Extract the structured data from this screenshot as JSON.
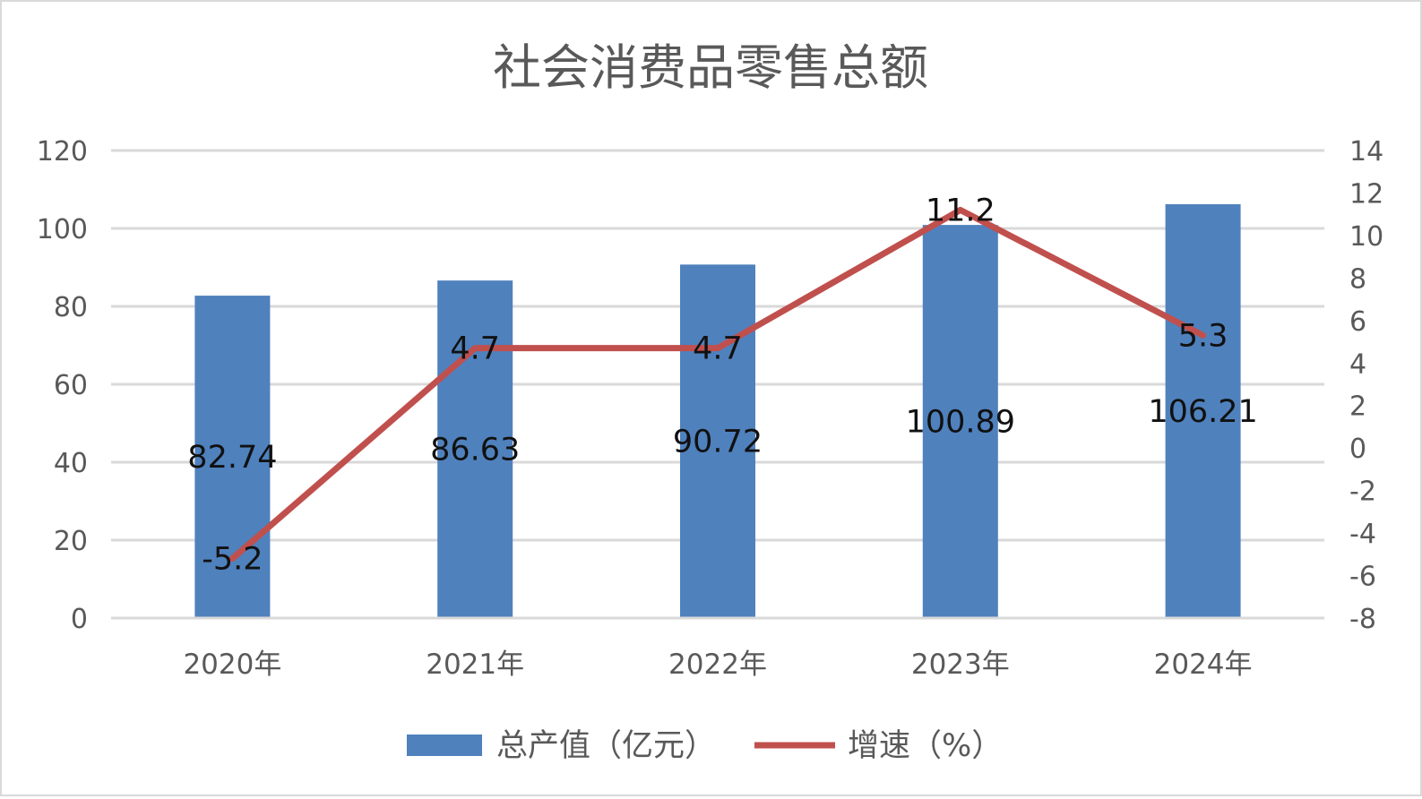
{
  "chart_data": {
    "type": "bar",
    "title": "社会消费品零售总额",
    "categories": [
      "2020年",
      "2021年",
      "2022年",
      "2023年",
      "2024年"
    ],
    "series": [
      {
        "name": "总产值（亿元）",
        "type": "bar",
        "axis": "left",
        "color": "#4f81bd",
        "values": [
          82.74,
          86.63,
          90.72,
          100.89,
          106.21
        ],
        "labels": [
          "82.74",
          "86.63",
          "90.72",
          "100.89",
          "106.21"
        ]
      },
      {
        "name": "增速（%）",
        "type": "line",
        "axis": "right",
        "color": "#c0504d",
        "values": [
          -5.2,
          4.7,
          4.7,
          11.2,
          5.3
        ],
        "labels": [
          "-5.2",
          "4.7",
          "4.7",
          "11.2",
          "5.3"
        ]
      }
    ],
    "y_left": {
      "lim": [
        0,
        120
      ],
      "ticks": [
        "0",
        "20",
        "40",
        "60",
        "80",
        "100",
        "120"
      ]
    },
    "y_right": {
      "lim": [
        -8,
        14
      ],
      "ticks": [
        "-8",
        "-6",
        "-4",
        "-2",
        "0",
        "2",
        "4",
        "6",
        "8",
        "10",
        "12",
        "14"
      ]
    },
    "grid": true,
    "legend_position": "bottom"
  }
}
